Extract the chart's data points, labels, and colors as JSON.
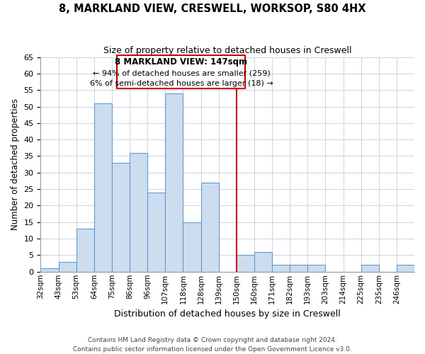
{
  "title": "8, MARKLAND VIEW, CRESWELL, WORKSOP, S80 4HX",
  "subtitle": "Size of property relative to detached houses in Creswell",
  "xlabel": "Distribution of detached houses by size in Creswell",
  "ylabel": "Number of detached properties",
  "footer_lines": [
    "Contains HM Land Registry data © Crown copyright and database right 2024.",
    "Contains public sector information licensed under the Open Government Licence v3.0."
  ],
  "bins": [
    "32sqm",
    "43sqm",
    "53sqm",
    "64sqm",
    "75sqm",
    "86sqm",
    "96sqm",
    "107sqm",
    "118sqm",
    "128sqm",
    "139sqm",
    "150sqm",
    "160sqm",
    "171sqm",
    "182sqm",
    "193sqm",
    "203sqm",
    "214sqm",
    "225sqm",
    "235sqm",
    "246sqm"
  ],
  "values": [
    1,
    3,
    13,
    51,
    33,
    36,
    24,
    54,
    15,
    27,
    0,
    5,
    6,
    2,
    2,
    2,
    0,
    0,
    2,
    0,
    2
  ],
  "bar_color": "#ccddf0",
  "bar_edge_color": "#6699cc",
  "property_line_x": 11.0,
  "property_line_label": "8 MARKLAND VIEW: 147sqm",
  "annotation_line1": "← 94% of detached houses are smaller (259)",
  "annotation_line2": "6% of semi-detached houses are larger (18) →",
  "box_color": "#ffffff",
  "box_edge_color": "#cc0000",
  "vline_color": "#cc0000",
  "ylim": [
    0,
    65
  ],
  "yticks": [
    0,
    5,
    10,
    15,
    20,
    25,
    30,
    35,
    40,
    45,
    50,
    55,
    60,
    65
  ]
}
